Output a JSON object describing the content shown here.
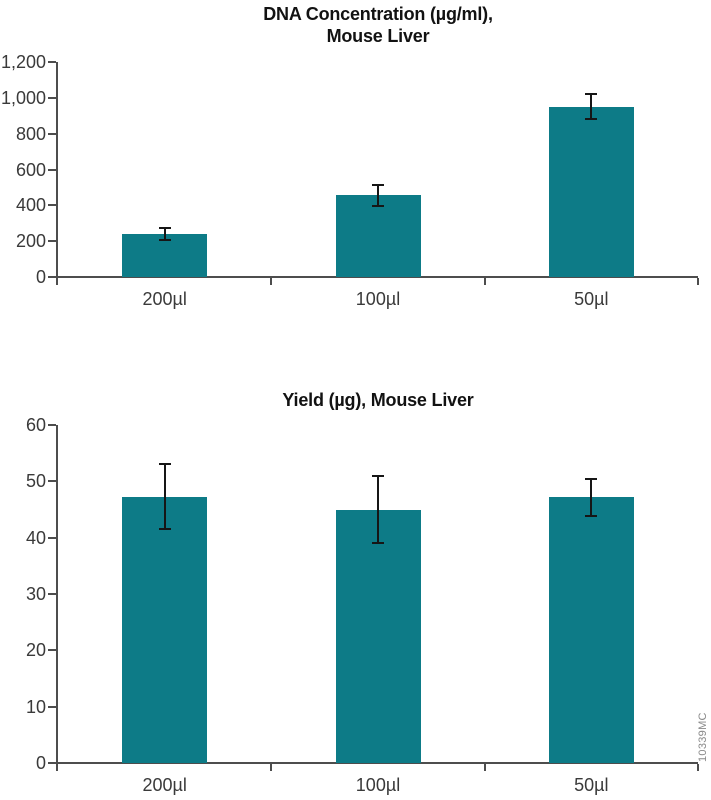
{
  "figure": {
    "watermark": "10339MC"
  },
  "chart_data": [
    {
      "type": "bar",
      "title": "DNA Concentration (µg/ml), Mouse Liver",
      "title_lines": [
        "DNA Concentration (µg/ml),",
        "Mouse Liver"
      ],
      "categories": [
        "200µl",
        "100µl",
        "50µl"
      ],
      "values": [
        240,
        455,
        950
      ],
      "errors": [
        35,
        60,
        70
      ],
      "xlabel": "",
      "ylabel": "",
      "ylim": [
        0,
        1200
      ],
      "ytick_step": 200,
      "ytick_labels": [
        "0",
        "200",
        "400",
        "600",
        "800",
        "1,000",
        "1,200"
      ],
      "grid": false,
      "legend": "none",
      "bar_color": "#0d7b87",
      "axis_color": "#4d4d4d",
      "error_bar_color": "#161616"
    },
    {
      "type": "bar",
      "title": "Yield (µg), Mouse Liver",
      "title_lines": [
        "Yield (µg), Mouse Liver"
      ],
      "categories": [
        "200µl",
        "100µl",
        "50µl"
      ],
      "values": [
        47.3,
        45,
        47.2
      ],
      "errors": [
        5.7,
        6,
        3.3
      ],
      "xlabel": "",
      "ylabel": "",
      "ylim": [
        0,
        60
      ],
      "ytick_step": 10,
      "ytick_labels": [
        "0",
        "10",
        "20",
        "30",
        "40",
        "50",
        "60"
      ],
      "grid": false,
      "legend": "none",
      "bar_color": "#0d7b87",
      "axis_color": "#4d4d4d",
      "error_bar_color": "#161616"
    }
  ]
}
